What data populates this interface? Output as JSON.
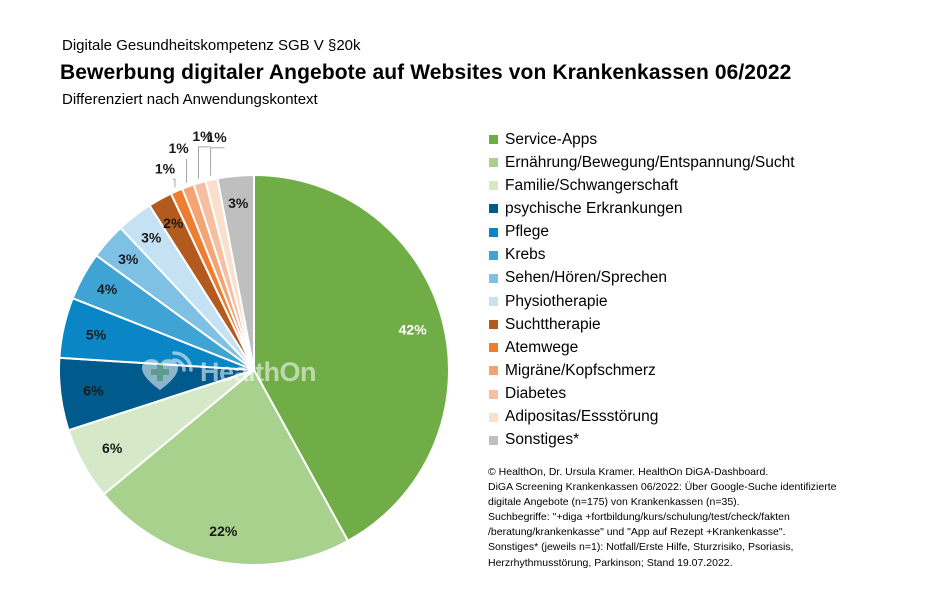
{
  "header": {
    "supertitle": "Digitale Gesundheitskompetenz SGB V §20k",
    "title": "Bewerbung digitaler Angebote auf Websites von Krankenkassen 06/2022",
    "subtitle": "Differenziert nach Anwendungskontext"
  },
  "watermark": {
    "text": "HealthOn"
  },
  "chart_data": {
    "type": "pie",
    "slices": [
      {
        "label": "Service-Apps",
        "value": 42,
        "display": "42%",
        "color": "#70ad47"
      },
      {
        "label": "Ernährung/Bewegung/Entspannung/Sucht",
        "value": 22,
        "display": "22%",
        "color": "#a9d18e"
      },
      {
        "label": "Familie/Schwangerschaft",
        "value": 6,
        "display": "6%",
        "color": "#d5e8c8"
      },
      {
        "label": "psychische Erkrankungen",
        "value": 6,
        "display": "6%",
        "color": "#005a8c"
      },
      {
        "label": "Pflege",
        "value": 5,
        "display": "5%",
        "color": "#0a86c6"
      },
      {
        "label": "Krebs",
        "value": 4,
        "display": "4%",
        "color": "#3fa3d4"
      },
      {
        "label": "Sehen/Hören/Sprechen",
        "value": 3,
        "display": "3%",
        "color": "#7fc1e4"
      },
      {
        "label": "Physiotherapie",
        "value": 3,
        "display": "3%",
        "color": "#c4e2f3"
      },
      {
        "label": "Suchttherapie",
        "value": 2,
        "display": "2%",
        "color": "#b35a1f"
      },
      {
        "label": "Atemwege",
        "value": 1,
        "display": "1%",
        "color": "#ed7d31"
      },
      {
        "label": "Migräne/Kopfschmerz",
        "value": 1,
        "display": "1%",
        "color": "#f4a373"
      },
      {
        "label": "Diabetes",
        "value": 1,
        "display": "1%",
        "color": "#f7bf9f"
      },
      {
        "label": "Adipositas/Essstörung",
        "value": 1,
        "display": "1%",
        "color": "#fbdfcd"
      },
      {
        "label": "Sonstiges*",
        "value": 3,
        "display": "3%",
        "color": "#bfbfbf"
      }
    ]
  },
  "footnote": {
    "lines": [
      "© HealthOn, Dr. Ursula Kramer. HealthOn DiGA-Dashboard.",
      "DiGA Screening Krankenkassen 06/2022: Über Google-Suche identifizierte",
      "digitale Angebote (n=175) von Krankenkassen (n=35).",
      "Suchbegriffe: \"+diga +fortbildung/kurs/schulung/test/check/fakten",
      "/beratung/krankenkasse\" und \"App auf Rezept +Krankenkasse\".",
      "Sonstiges* (jeweils n=1): Notfall/Erste Hilfe, Sturzrisiko, Psoriasis,",
      "Herzrhythmusstörung, Parkinson; Stand 19.07.2022."
    ]
  }
}
